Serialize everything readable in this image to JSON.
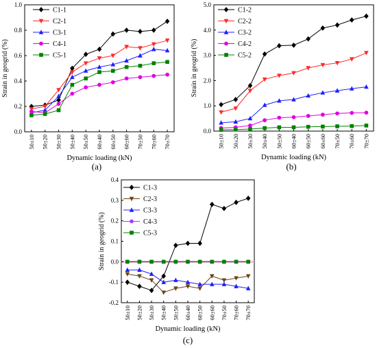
{
  "chart_data": [
    {
      "type": "line",
      "panel_label": "(a)",
      "xlabel": "Dynamic loading (kN)",
      "ylabel": "Strain in geogrid (%)",
      "categories": [
        "50±10",
        "50±20",
        "50±30",
        "50±40",
        "50±50",
        "60±40",
        "60±50",
        "60±60",
        "70±50",
        "70±60",
        "70±70"
      ],
      "ylim": [
        0,
        1.0
      ],
      "yticks": [
        0,
        0.2,
        0.4,
        0.6,
        0.8,
        1.0
      ],
      "ytick_labels": [
        "0.0",
        "0.2",
        "0.4",
        "0.6",
        "0.8",
        "1.0"
      ],
      "legend_position": "top-left",
      "series": [
        {
          "name": "C1-1",
          "color": "#000000",
          "marker": "diamond",
          "values": [
            0.2,
            0.21,
            0.25,
            0.5,
            0.61,
            0.65,
            0.77,
            0.8,
            0.79,
            0.8,
            0.87
          ]
        },
        {
          "name": "C2-1",
          "color": "#ff2a2a",
          "marker": "triangle-down",
          "values": [
            0.18,
            0.2,
            0.33,
            0.47,
            0.54,
            0.58,
            0.6,
            0.67,
            0.66,
            0.69,
            0.72
          ]
        },
        {
          "name": "C3-1",
          "color": "#1f1fff",
          "marker": "triangle-up",
          "values": [
            0.15,
            0.17,
            0.28,
            0.43,
            0.48,
            0.51,
            0.53,
            0.56,
            0.6,
            0.65,
            0.64
          ]
        },
        {
          "name": "C4-1",
          "color": "#e000e0",
          "marker": "circle",
          "values": [
            0.16,
            0.15,
            0.22,
            0.3,
            0.35,
            0.37,
            0.39,
            0.42,
            0.43,
            0.44,
            0.45
          ]
        },
        {
          "name": "C5-1",
          "color": "#008000",
          "marker": "square",
          "values": [
            0.13,
            0.14,
            0.17,
            0.37,
            0.42,
            0.47,
            0.48,
            0.51,
            0.52,
            0.54,
            0.55
          ]
        }
      ]
    },
    {
      "type": "line",
      "panel_label": "(b)",
      "xlabel": "Dynamic loading (kN)",
      "ylabel": "Strain in geogrid (%)",
      "categories": [
        "50±10",
        "50±20",
        "50±30",
        "50±40",
        "50±50",
        "60±40",
        "60±50",
        "60±60",
        "70±50",
        "70±60",
        "70±70"
      ],
      "ylim": [
        0,
        5.0
      ],
      "yticks": [
        0,
        1,
        2,
        3,
        4,
        5
      ],
      "ytick_labels": [
        "0.0",
        "1.0",
        "2.0",
        "3.0",
        "4.0",
        "5.0"
      ],
      "legend_position": "top-left",
      "series": [
        {
          "name": "C1-2",
          "color": "#000000",
          "marker": "diamond",
          "values": [
            1.05,
            1.25,
            1.8,
            3.05,
            3.38,
            3.4,
            3.65,
            4.08,
            4.2,
            4.4,
            4.55
          ]
        },
        {
          "name": "C2-2",
          "color": "#ff2a2a",
          "marker": "triangle-down",
          "values": [
            0.75,
            0.9,
            1.6,
            2.05,
            2.2,
            2.3,
            2.5,
            2.62,
            2.7,
            2.85,
            3.1
          ]
        },
        {
          "name": "C3-2",
          "color": "#1f1fff",
          "marker": "triangle-up",
          "values": [
            0.33,
            0.37,
            0.5,
            1.03,
            1.2,
            1.25,
            1.4,
            1.52,
            1.6,
            1.68,
            1.75
          ]
        },
        {
          "name": "C4-2",
          "color": "#e000e0",
          "marker": "circle",
          "values": [
            0.12,
            0.15,
            0.22,
            0.43,
            0.53,
            0.55,
            0.6,
            0.65,
            0.7,
            0.72,
            0.73
          ]
        },
        {
          "name": "C5-2",
          "color": "#008000",
          "marker": "square",
          "values": [
            0.05,
            0.06,
            0.08,
            0.12,
            0.15,
            0.15,
            0.17,
            0.18,
            0.19,
            0.2,
            0.22
          ]
        }
      ]
    },
    {
      "type": "line",
      "panel_label": "(c)",
      "xlabel": "Dynamic loading (kN)",
      "ylabel": "Strain in geogrid (%)",
      "categories": [
        "50±10",
        "50±20",
        "50±30",
        "50±40",
        "50±50",
        "60±40",
        "60±50",
        "60±60",
        "70±50",
        "70±60",
        "70±70"
      ],
      "ylim": [
        -0.2,
        0.4
      ],
      "yticks": [
        -0.2,
        -0.1,
        0,
        0.1,
        0.2,
        0.3,
        0.4
      ],
      "ytick_labels": [
        "-0.2",
        "-0.1",
        "0.0",
        "0.1",
        "0.2",
        "0.3",
        "0.4"
      ],
      "legend_position": "top-left",
      "series": [
        {
          "name": "C1-3",
          "color": "#000000",
          "marker": "diamond",
          "values": [
            -0.1,
            -0.12,
            -0.14,
            -0.07,
            0.08,
            0.09,
            0.09,
            0.28,
            0.26,
            0.29,
            0.31
          ]
        },
        {
          "name": "C2-3",
          "color": "#6b4513",
          "marker": "triangle-down",
          "values": [
            -0.06,
            -0.07,
            -0.09,
            -0.15,
            -0.13,
            -0.12,
            -0.13,
            -0.07,
            -0.09,
            -0.08,
            -0.07
          ]
        },
        {
          "name": "C3-3",
          "color": "#1f1fff",
          "marker": "triangle-up",
          "values": [
            -0.04,
            -0.04,
            -0.06,
            -0.1,
            -0.09,
            -0.1,
            -0.11,
            -0.11,
            -0.11,
            -0.12,
            -0.13
          ]
        },
        {
          "name": "C4-3",
          "color": "#a040ff",
          "marker": "circle",
          "values": [
            0,
            0,
            0,
            0,
            0,
            0,
            0,
            0,
            0,
            0,
            0
          ]
        },
        {
          "name": "C5-3",
          "color": "#008000",
          "marker": "square",
          "values": [
            0,
            0,
            0,
            0,
            0,
            0,
            0,
            0,
            0,
            0,
            0
          ]
        }
      ]
    }
  ]
}
